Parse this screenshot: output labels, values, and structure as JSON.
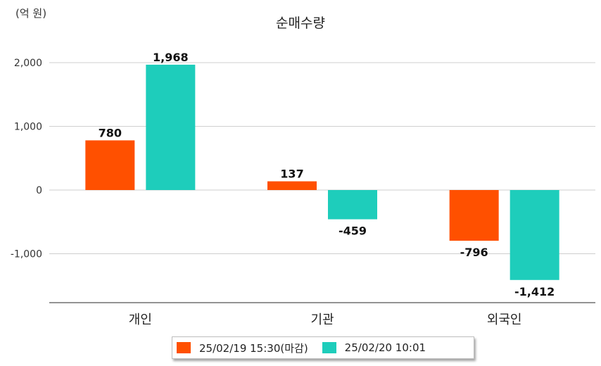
{
  "unit_label": "(억 원)",
  "chart_data": {
    "type": "bar",
    "title": "순매수량",
    "categories": [
      "개인",
      "기관",
      "외국인"
    ],
    "series": [
      {
        "name": "25/02/19 15:30(마감)",
        "color": "#ff5000",
        "values": [
          780,
          137,
          -796
        ]
      },
      {
        "name": "25/02/20 10:01",
        "color": "#1ecdbb",
        "values": [
          1968,
          -459,
          -1412
        ]
      }
    ],
    "data_labels": [
      [
        "780",
        "137",
        "-796"
      ],
      [
        "1,968",
        "-459",
        "-1,412"
      ]
    ],
    "yticks": [
      2000,
      1000,
      0,
      -1000
    ],
    "ytick_labels": [
      "2,000",
      "1,000",
      "0",
      "-1,000"
    ],
    "ylim": [
      -1760,
      2200
    ],
    "grid": true,
    "legend_position": "bottom"
  }
}
